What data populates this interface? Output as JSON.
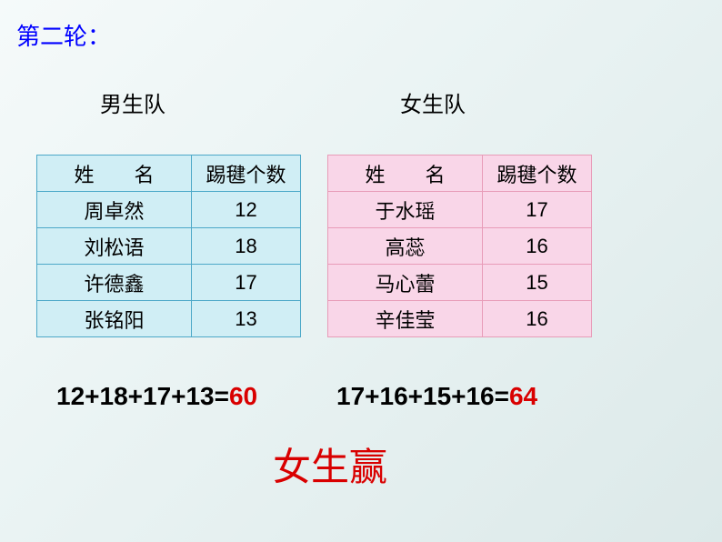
{
  "round_title": "第二轮：",
  "boys": {
    "team_label": "男生队",
    "col_name": "姓　　名",
    "col_count": "踢毽个数",
    "rows": [
      {
        "name": "周卓然",
        "count": "12"
      },
      {
        "name": "刘松语",
        "count": "18"
      },
      {
        "name": "许德鑫",
        "count": "17"
      },
      {
        "name": "张铭阳",
        "count": "13"
      }
    ],
    "equation_lhs": "12+18+17+13=",
    "equation_result": "60"
  },
  "girls": {
    "team_label": "女生队",
    "col_name": "姓　　名",
    "col_count": "踢毽个数",
    "rows": [
      {
        "name": "于水瑶",
        "count": "17"
      },
      {
        "name": "高蕊",
        "count": "16"
      },
      {
        "name": "马心蕾",
        "count": "15"
      },
      {
        "name": "辛佳莹",
        "count": "16"
      }
    ],
    "equation_lhs": "17+16+15+16=",
    "equation_result": "64"
  },
  "winner": "女生赢",
  "colors": {
    "title": "#0000ff",
    "boys_border": "#4ca8c8",
    "boys_fill": "#d0eef5",
    "girls_border": "#e89cb8",
    "girls_fill": "#f9d6e8",
    "result": "#d90000",
    "background_start": "#f5fafa",
    "background_end": "#dce9e9"
  }
}
